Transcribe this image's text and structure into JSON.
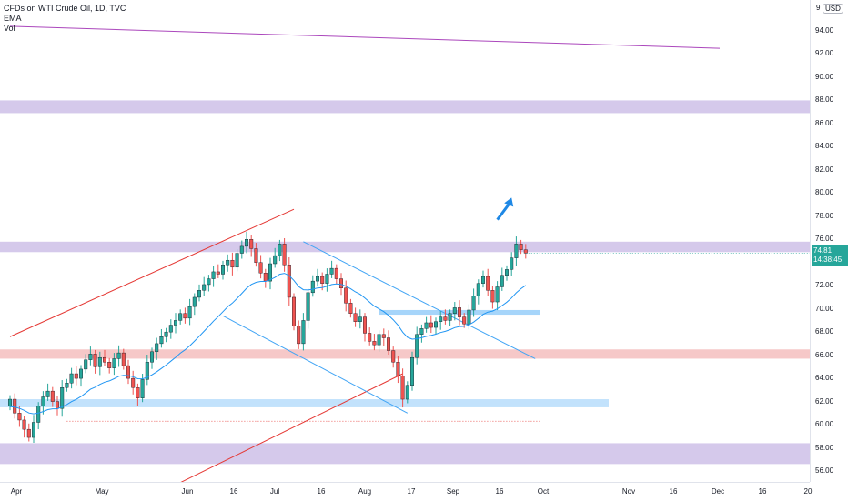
{
  "legend": {
    "symbol": "CFDs on WTI Crude Oil, 1D, TVC",
    "ema": "EMA",
    "vol": "Vol"
  },
  "price_axis": {
    "currency": "USD",
    "partial_top": "9",
    "ticks": [
      "94.00",
      "92.00",
      "90.00",
      "88.00",
      "86.00",
      "84.00",
      "82.00",
      "80.00",
      "78.00",
      "76.00",
      "74.00",
      "72.00",
      "70.00",
      "68.00",
      "66.00",
      "64.00",
      "62.00",
      "60.00",
      "58.00",
      "56.00"
    ],
    "last_price": "74.81",
    "countdown": "14:38:45"
  },
  "time_axis": {
    "ticks": [
      "Apr",
      "May",
      "Jun",
      "16",
      "Jul",
      "16",
      "Aug",
      "17",
      "Sep",
      "16",
      "Oct",
      "Nov",
      "16",
      "Dec",
      "16",
      "20"
    ]
  },
  "colors": {
    "up": "#26a69a",
    "down": "#ef5350",
    "candle_body": "#131722",
    "ema": "#2196f3",
    "purple_zone": "#b39ddb",
    "red_zone": "#ef9a9a",
    "blue_zone": "#90caf9",
    "trend_red": "#e53935",
    "trend_blue": "#42a5f5",
    "trend_purple": "#ab47bc",
    "arrow": "#1e88e5"
  },
  "chart_data": {
    "type": "candlestick",
    "symbol": "CFDs on WTI Crude Oil",
    "interval": "1D",
    "y_range": [
      55,
      96
    ],
    "zones": [
      {
        "color": "purple",
        "from": 86.9,
        "to": 88.0
      },
      {
        "color": "purple",
        "from": 74.9,
        "to": 75.8
      },
      {
        "color": "red",
        "from": 65.7,
        "to": 66.5
      },
      {
        "color": "blue",
        "from": 61.5,
        "to": 62.2
      },
      {
        "color": "purple",
        "from": 56.6,
        "to": 58.4
      }
    ],
    "closes": [
      62.2,
      61.0,
      60.4,
      59.6,
      58.9,
      60.2,
      61.6,
      62.4,
      62.9,
      62.0,
      61.4,
      63.2,
      63.6,
      64.4,
      64.0,
      64.8,
      65.6,
      66.1,
      65.0,
      65.8,
      65.4,
      64.9,
      65.7,
      66.2,
      65.1,
      64.0,
      63.2,
      62.3,
      63.9,
      65.4,
      66.3,
      67.0,
      67.6,
      68.0,
      68.6,
      69.0,
      69.6,
      69.2,
      70.2,
      71.0,
      71.6,
      72.1,
      72.6,
      73.2,
      73.0,
      73.8,
      74.2,
      73.6,
      74.8,
      75.4,
      76.0,
      75.2,
      74.0,
      73.1,
      72.4,
      73.9,
      74.6,
      75.6,
      73.8,
      71.0,
      68.5,
      67.0,
      69.0,
      71.4,
      72.4,
      72.8,
      72.2,
      73.0,
      73.5,
      72.6,
      71.8,
      70.5,
      69.6,
      68.9,
      69.3,
      67.9,
      67.2,
      66.9,
      67.8,
      67.5,
      66.4,
      65.4,
      64.2,
      62.2,
      63.4,
      65.8,
      67.8,
      68.3,
      68.8,
      68.4,
      68.9,
      69.3,
      69.0,
      69.6,
      70.1,
      69.3,
      68.7,
      69.9,
      71.1,
      72.2,
      72.8,
      71.6,
      70.6,
      71.9,
      72.9,
      73.4,
      74.4,
      75.6,
      75.1,
      74.81
    ],
    "ema_start": 61.5,
    "trendlines": [
      {
        "color": "red",
        "from": [
          0,
          67.6
        ],
        "to": [
          60,
          78.6
        ]
      },
      {
        "color": "red",
        "from": [
          34,
          54.6
        ],
        "to": [
          83,
          64.4
        ]
      },
      {
        "color": "blue",
        "from": [
          62,
          75.8
        ],
        "to": [
          111,
          65.7
        ]
      },
      {
        "color": "blue",
        "from": [
          45,
          69.4
        ],
        "to": [
          84,
          61.0
        ]
      },
      {
        "color": "purple",
        "from": [
          0,
          94.4
        ],
        "to": [
          150,
          92.5
        ]
      }
    ],
    "arrow": {
      "from": [
        103,
        77.7
      ],
      "to": [
        106,
        79.6
      ]
    }
  }
}
